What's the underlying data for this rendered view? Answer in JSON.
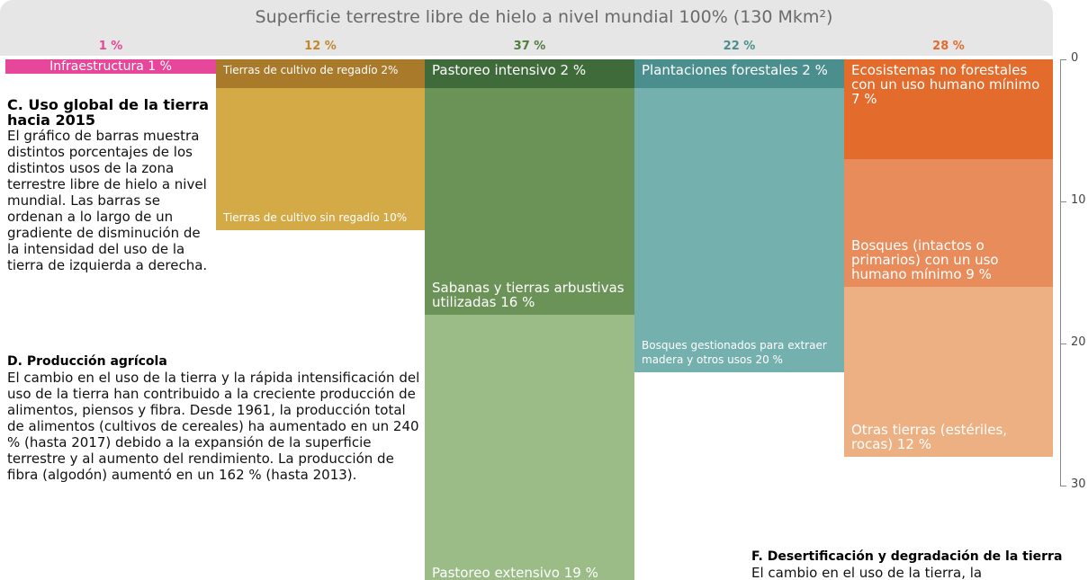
{
  "chart_data": {
    "type": "stacked-column",
    "title": "Superficie terrestre libre de hielo a nivel mundial 100% (130 Mkm²)",
    "ylim": [
      0,
      30
    ],
    "yticks": [
      0,
      10,
      20,
      30
    ],
    "columns": [
      {
        "total": 1,
        "total_label": "1 %",
        "color": "#e6479a",
        "segments": [
          {
            "name": "Infraestructura 1 %",
            "value": 1,
            "color": "#e6479a"
          }
        ]
      },
      {
        "total": 12,
        "total_label": "12 %",
        "color": "#c0882a",
        "segments": [
          {
            "name": "Tierras de cultivo de regadío 2%",
            "value": 2,
            "color": "#a87a2a"
          },
          {
            "name": "Tierras de cultivo sin regadío 10%",
            "value": 10,
            "color": "#d4aa47"
          }
        ]
      },
      {
        "total": 37,
        "total_label": "37 %",
        "color": "#4f7d3d",
        "segments": [
          {
            "name": "Pastoreo intensivo 2 %",
            "value": 2,
            "color": "#3f6b3b"
          },
          {
            "name": "Sabanas y tierras arbustivas utilizadas 16 %",
            "value": 16,
            "color": "#6b9358"
          },
          {
            "name": "Pastoreo extensivo 19 %",
            "value": 19,
            "color": "#9bbb87"
          }
        ]
      },
      {
        "total": 22,
        "total_label": "22 %",
        "color": "#4a8f8d",
        "segments": [
          {
            "name": "Plantaciones forestales 2 %",
            "value": 2,
            "color": "#4a8f8d"
          },
          {
            "name": "Bosques gestionados para extraer madera y otros usos 20 %",
            "value": 20,
            "color": "#74b0ae"
          }
        ]
      },
      {
        "total": 28,
        "total_label": "28 %",
        "color": "#e36b2c",
        "segments": [
          {
            "name": "Ecosistemas no forestales con un uso humano mínimo 7 %",
            "value": 7,
            "color": "#e36b2c"
          },
          {
            "name": "Bosques (intactos o primarios) con un uso humano mínimo 9 %",
            "value": 9,
            "color": "#e98c5c"
          },
          {
            "name": "Otras tierras (estériles, rocas) 12 %",
            "value": 12,
            "color": "#edb083"
          }
        ]
      }
    ]
  },
  "sections": [
    {
      "heading": "C. Uso global de la tierra hacia 2015",
      "body": "El gráfico de barras muestra distintos porcentajes de los distintos usos de la zona terrestre libre de hielo a nivel mundial. Las barras se ordenan a lo largo de un gradiente de disminución de la intensidad del uso de la tierra de izquierda a derecha."
    },
    {
      "heading": "D. Producción agrícola",
      "body": "El cambio en el uso de la tierra y la rápida intensificación del uso de la tierra han contribuido a la creciente producción de alimentos, piensos y fibra. Desde 1961, la producción total de alimentos (cultivos de cereales) ha aumentado en un 240 % (hasta 2017) debido a la expansión de la superficie terrestre y al aumento del rendimiento. La producción de fibra (algodón) aumentó en un 162 % (hasta 2013)."
    },
    {
      "heading": "F. Desertificación y degradación de la tierra",
      "body": "El cambio en el uso de la tierra, la"
    }
  ]
}
